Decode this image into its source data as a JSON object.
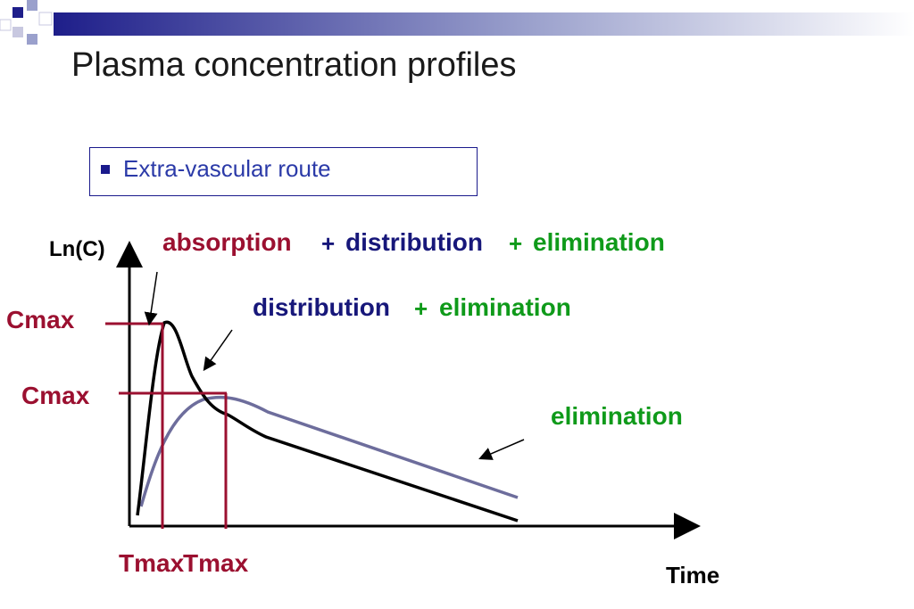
{
  "title": "Plasma concentration profiles",
  "bullet": "Extra-vascular route",
  "y_axis_label": "Ln(C)",
  "x_axis_label": "Time",
  "phase_row1": {
    "absorption": "absorption",
    "plus1": "+",
    "distribution": "distribution",
    "plus2": "+",
    "elimination": "elimination"
  },
  "phase_row2": {
    "distribution": "distribution",
    "plus": "+",
    "elimination": "elimination"
  },
  "phase_row3": {
    "elimination": "elimination"
  },
  "cmax_1": "Cmax",
  "cmax_2": "Cmax",
  "tmax_1": "Tmax",
  "tmax_2": "Tmax",
  "colors": {
    "red": "#9b1030",
    "navy": "#17177a",
    "green": "#0f9a1a",
    "curve_fast": "#000000",
    "curve_slow": "#6d6d9c"
  }
}
